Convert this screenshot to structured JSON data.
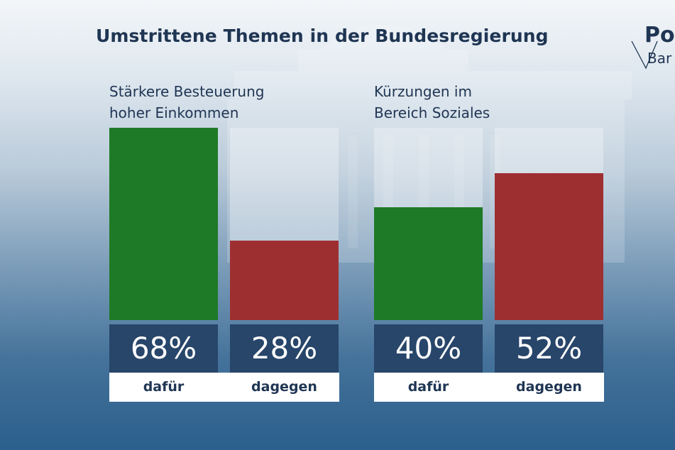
{
  "title": "Umstrittene Themen in der Bundesregierung",
  "logo": {
    "line1": "Po",
    "line2": "Bar"
  },
  "colors": {
    "dafuer": "#1e7a26",
    "dagegen": "#9e2f31",
    "value_box": "#28456a",
    "title_text": "#1f3553"
  },
  "chart_data": [
    {
      "type": "bar",
      "title_lines": [
        "Stärkere Besteuerung",
        "hoher Einkommen"
      ],
      "categories": [
        "dafür",
        "dagegen"
      ],
      "values": [
        68,
        28
      ],
      "value_labels": [
        "68%",
        "28%"
      ],
      "ylim": [
        0,
        68
      ]
    },
    {
      "type": "bar",
      "title_lines": [
        "Kürzungen im",
        "Bereich Soziales"
      ],
      "categories": [
        "dafür",
        "dagegen"
      ],
      "values": [
        40,
        52
      ],
      "value_labels": [
        "40%",
        "52%"
      ],
      "ylim": [
        0,
        68
      ]
    }
  ]
}
